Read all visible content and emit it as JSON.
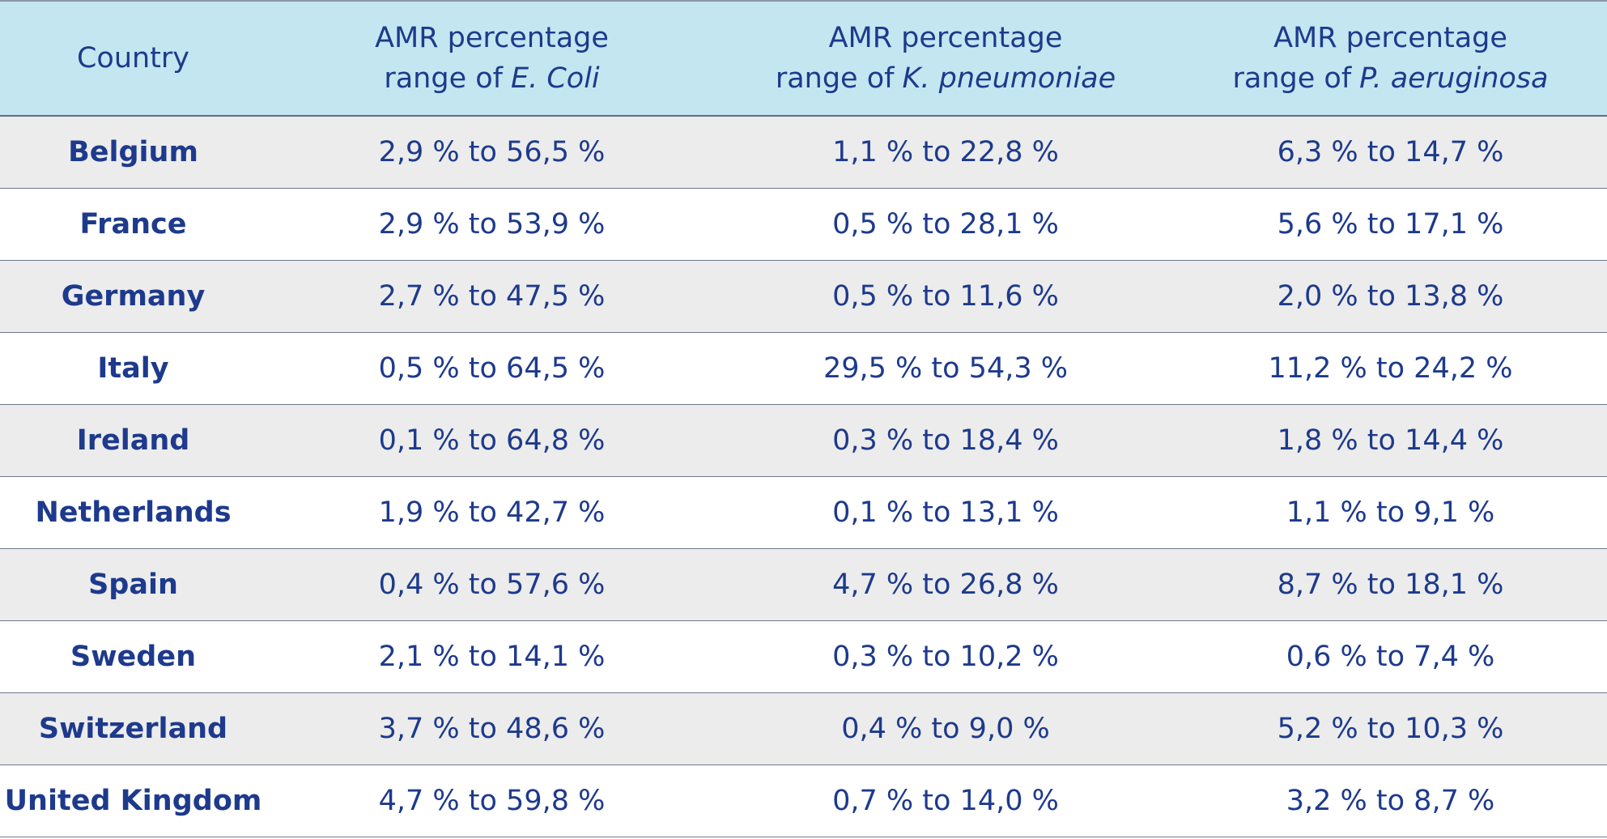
{
  "table": {
    "header": [
      {
        "line1": "Country"
      },
      {
        "line1": "AMR percentage",
        "line2": "range of",
        "species": "E. Coli"
      },
      {
        "line1": "AMR percentage",
        "line2": "range of",
        "species": "K. pneumoniae"
      },
      {
        "line1": "AMR percentage",
        "line2": "range of",
        "species": "P. aeruginosa"
      }
    ],
    "rows": [
      [
        "Belgium",
        "2,9 % to 56,5 %",
        "1,1 % to 22,8 %",
        "6,3 % to 14,7 %"
      ],
      [
        "France",
        "2,9 % to 53,9 %",
        "0,5 % to 28,1 %",
        "5,6 % to 17,1 %"
      ],
      [
        "Germany",
        "2,7 % to 47,5 %",
        "0,5 % to 11,6 %",
        "2,0 % to 13,8 %"
      ],
      [
        "Italy",
        "0,5 % to 64,5 %",
        "29,5 % to 54,3 %",
        "11,2 % to 24,2 %"
      ],
      [
        "Ireland",
        "0,1 % to 64,8 %",
        "0,3 % to 18,4 %",
        "1,8 % to 14,4 %"
      ],
      [
        "Netherlands",
        "1,9 % to 42,7 %",
        "0,1 % to 13,1 %",
        "1,1 % to 9,1 %"
      ],
      [
        "Spain",
        "0,4 % to 57,6 %",
        "4,7 % to 26,8 %",
        "8,7 % to 18,1 %"
      ],
      [
        "Sweden",
        "2,1 % to 14,1 %",
        "0,3 % to 10,2 %",
        "0,6 % to 7,4 %"
      ],
      [
        "Switzerland",
        "3,7 % to 48,6 %",
        "0,4 % to 9,0 %",
        "5,2 % to 10,3 %"
      ],
      [
        "United Kingdom",
        "4,7 % to 59,8 %",
        "0,7 % to 14,0 %",
        "3,2 % to 8,7 %"
      ]
    ]
  }
}
